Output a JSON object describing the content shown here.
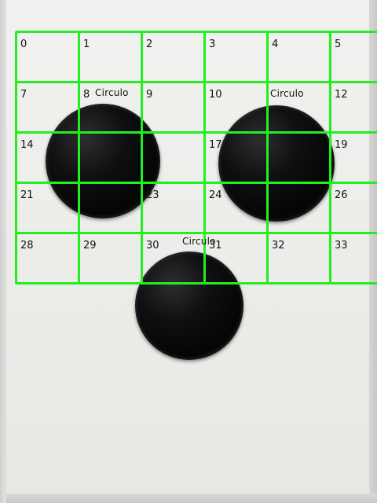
{
  "grid": {
    "cells": [
      "0",
      "1",
      "2",
      "3",
      "4",
      "5",
      "7",
      "8",
      "9",
      "10",
      "",
      "12",
      "14",
      "",
      "",
      "17",
      "",
      "19",
      "21",
      "",
      "23",
      "24",
      "",
      "26",
      "28",
      "29",
      "30",
      "31",
      "32",
      "33"
    ],
    "line_color": "#22ee22"
  },
  "detections": [
    {
      "label": "Circulo"
    },
    {
      "label": "Circulo"
    },
    {
      "label": "Circulo"
    }
  ],
  "colors": {
    "paper": "#eeeeec",
    "blob": "#0a0a0b",
    "grid": "#22ee22"
  }
}
